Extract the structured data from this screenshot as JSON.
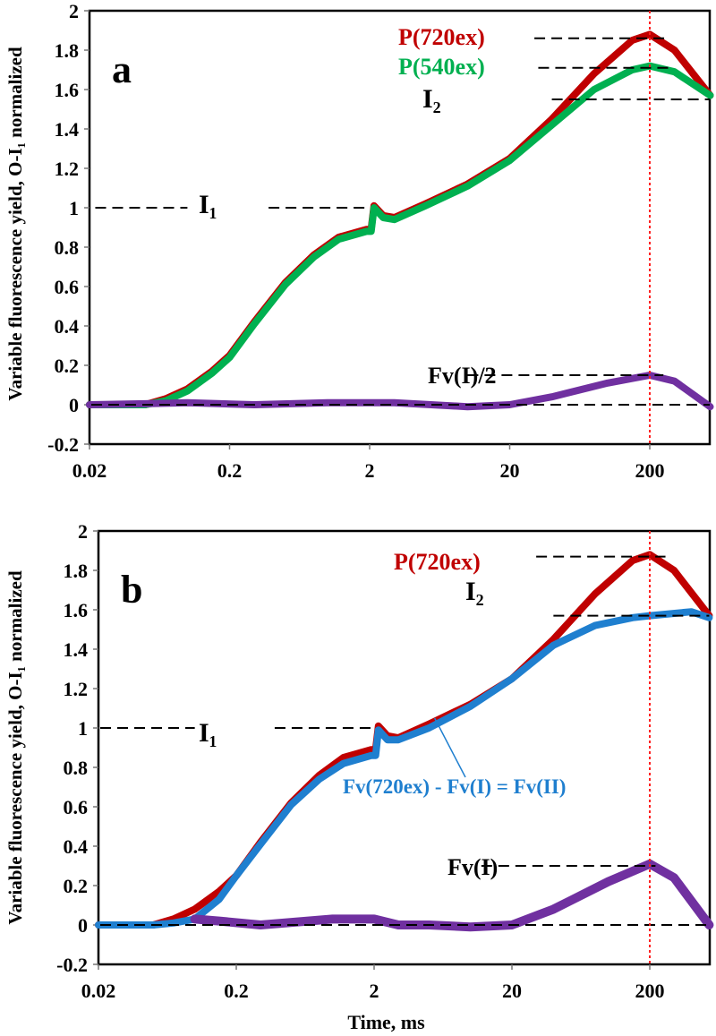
{
  "chart_data": [
    {
      "type": "line",
      "panel_label": "a",
      "x_scale": "log",
      "xlim": [
        0.02,
        540
      ],
      "ylim": [
        -0.2,
        2
      ],
      "x_ticks": [
        "0.02",
        "0.2",
        "2",
        "20",
        "200"
      ],
      "y_ticks": [
        "-0.2",
        "0",
        "0.2",
        "0.4",
        "0.6",
        "0.8",
        "1",
        "1.2",
        "1.4",
        "1.6",
        "1.8",
        "2"
      ],
      "ylabel": "Variable fluorescence yield, O-I₁ normalized",
      "xlabel": "",
      "grid": false,
      "marker_line_x": 200,
      "marker_line_color": "#ff2020",
      "series": [
        {
          "name": "P(720ex)",
          "color": "#c00000",
          "x": [
            0.02,
            0.05,
            0.07,
            0.1,
            0.15,
            0.2,
            0.3,
            0.5,
            0.8,
            1.2,
            1.9,
            2.05,
            2.15,
            2.5,
            3,
            5,
            10,
            20,
            40,
            80,
            150,
            200,
            300,
            540
          ],
          "y": [
            0,
            0,
            0.03,
            0.08,
            0.17,
            0.25,
            0.42,
            0.62,
            0.76,
            0.85,
            0.89,
            0.89,
            1.01,
            0.96,
            0.95,
            1.02,
            1.12,
            1.25,
            1.45,
            1.68,
            1.85,
            1.88,
            1.8,
            1.57
          ]
        },
        {
          "name": "P(540ex)",
          "color": "#00b050",
          "x": [
            0.02,
            0.05,
            0.07,
            0.1,
            0.15,
            0.2,
            0.3,
            0.5,
            0.8,
            1.2,
            1.9,
            2.05,
            2.15,
            2.5,
            3,
            5,
            10,
            20,
            40,
            80,
            150,
            200,
            300,
            540
          ],
          "y": [
            0,
            0,
            0.02,
            0.07,
            0.16,
            0.24,
            0.41,
            0.61,
            0.75,
            0.84,
            0.88,
            0.88,
            1.0,
            0.95,
            0.94,
            1.01,
            1.11,
            1.24,
            1.42,
            1.6,
            1.7,
            1.72,
            1.69,
            1.57
          ]
        },
        {
          "name": "Fv(I)/2",
          "color": "#7030a0",
          "x": [
            0.02,
            0.05,
            0.1,
            0.3,
            1,
            3,
            10,
            20,
            40,
            100,
            200,
            300,
            540
          ],
          "y": [
            0,
            0.005,
            0.01,
            0,
            0.01,
            0.01,
            -0.01,
            0,
            0.04,
            0.11,
            0.15,
            0.12,
            -0.01
          ]
        }
      ],
      "reference_lines": [
        {
          "label": "P(720ex)",
          "y": 1.86,
          "x_range": [
            30,
            260
          ]
        },
        {
          "label": "P(540ex)",
          "y": 1.71,
          "x_range": [
            32,
            280
          ]
        },
        {
          "label": "I₂",
          "y": 1.55,
          "x_range": [
            40,
            540
          ]
        },
        {
          "label": "I₁",
          "y": 1.0,
          "x_range": [
            0.022,
            2
          ]
        },
        {
          "label": "Fv(I)/2",
          "y": 0.15,
          "x_range": [
            10,
            250
          ]
        },
        {
          "label": "",
          "y": 0,
          "x_range": [
            0.02,
            540
          ]
        }
      ]
    },
    {
      "type": "line",
      "panel_label": "b",
      "x_scale": "log",
      "xlim": [
        0.02,
        540
      ],
      "ylim": [
        -0.2,
        2
      ],
      "x_ticks": [
        "0.02",
        "0.2",
        "2",
        "20",
        "200"
      ],
      "y_ticks": [
        "-0.2",
        "0",
        "0.2",
        "0.4",
        "0.6",
        "0.8",
        "1",
        "1.2",
        "1.4",
        "1.6",
        "1.8",
        "2"
      ],
      "ylabel": "Variable fluorescence yield, O-I₁ normalized",
      "xlabel": "Time, ms",
      "grid": false,
      "marker_line_x": 200,
      "marker_line_color": "#ff2020",
      "annotation": "Fv(720ex) - Fv(I) = Fv(II)",
      "series": [
        {
          "name": "P(720ex)",
          "color": "#c00000",
          "x": [
            0.02,
            0.05,
            0.07,
            0.1,
            0.15,
            0.2,
            0.3,
            0.5,
            0.8,
            1.2,
            1.9,
            2.05,
            2.15,
            2.5,
            3,
            5,
            10,
            20,
            40,
            80,
            150,
            200,
            300,
            540
          ],
          "y": [
            0,
            0,
            0.03,
            0.08,
            0.17,
            0.25,
            0.42,
            0.62,
            0.76,
            0.85,
            0.89,
            0.89,
            1.01,
            0.96,
            0.95,
            1.02,
            1.12,
            1.25,
            1.45,
            1.68,
            1.85,
            1.88,
            1.8,
            1.57
          ]
        },
        {
          "name": "Fv(720ex) - Fv(I) = Fv(II)",
          "color": "#1f7fcf",
          "x": [
            0.02,
            0.05,
            0.07,
            0.1,
            0.15,
            0.2,
            0.3,
            0.5,
            0.8,
            1.2,
            1.9,
            2.05,
            2.15,
            2.5,
            3,
            5,
            10,
            20,
            40,
            80,
            150,
            200,
            400,
            540
          ],
          "y": [
            0,
            0,
            0.01,
            0.03,
            0.13,
            0.25,
            0.41,
            0.61,
            0.74,
            0.82,
            0.86,
            0.86,
            0.99,
            0.94,
            0.94,
            1.0,
            1.11,
            1.25,
            1.42,
            1.52,
            1.56,
            1.57,
            1.59,
            1.56
          ]
        },
        {
          "name": "Fv(I)",
          "color": "#7030a0",
          "x": [
            0.1,
            0.15,
            0.3,
            1,
            2,
            3,
            5,
            10,
            20,
            40,
            100,
            200,
            300,
            540
          ],
          "y": [
            0.03,
            0.02,
            0,
            0.03,
            0.03,
            0,
            0,
            -0.01,
            0,
            0.08,
            0.22,
            0.31,
            0.24,
            0
          ]
        }
      ],
      "reference_lines": [
        {
          "label": "P(720ex)",
          "y": 1.87,
          "x_range": [
            30,
            260
          ]
        },
        {
          "label": "I₂",
          "y": 1.57,
          "x_range": [
            40,
            540
          ]
        },
        {
          "label": "I₁",
          "y": 1.0,
          "x_range": [
            0.02,
            2
          ]
        },
        {
          "label": "Fv(I)",
          "y": 0.3,
          "x_range": [
            12,
            220
          ]
        },
        {
          "label": "",
          "y": 0,
          "x_range": [
            0.02,
            540
          ]
        }
      ]
    }
  ]
}
